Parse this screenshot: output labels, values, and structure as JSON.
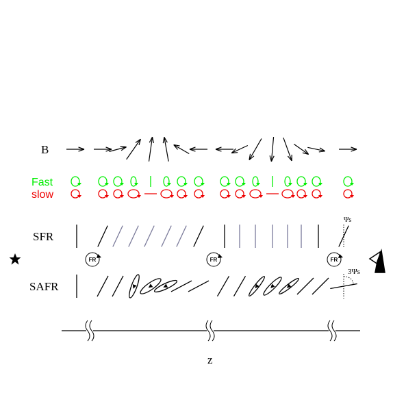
{
  "labels": {
    "b": "B",
    "fast": "Fast",
    "slow": "slow",
    "sfr": "SFR",
    "safr": "SAFR",
    "z": "z"
  },
  "fr_markers": [
    "FR",
    "FR",
    "FR"
  ],
  "angles": {
    "psi": "Ψs",
    "three_psi": "3Ψs"
  }
}
